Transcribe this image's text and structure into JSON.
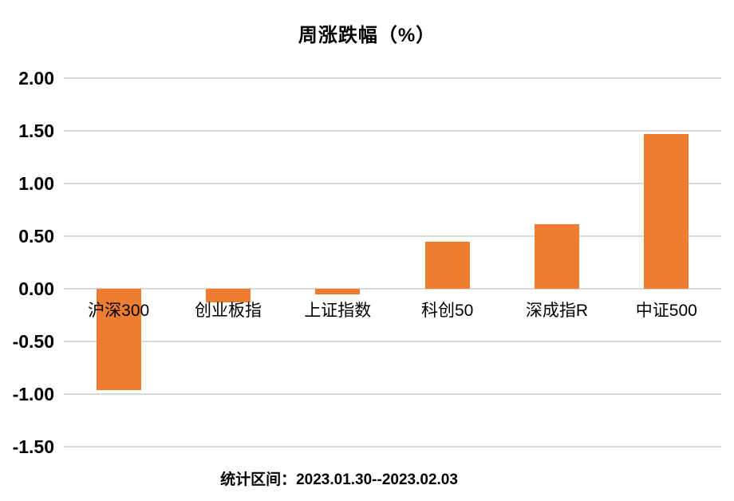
{
  "title": "周涨跌幅（%）",
  "footer": "统计区间：2023.01.30--2023.02.03",
  "colors": {
    "bar": "#ED7D31",
    "gridline": "#D9D9D9",
    "text": "#000000",
    "background": "#FFFFFF"
  },
  "chart_data": {
    "type": "bar",
    "title": "周涨跌幅（%）",
    "categories": [
      "沪深300",
      "创业板指",
      "上证指数",
      "科创50",
      "深成指R",
      "中证500"
    ],
    "values": [
      -0.96,
      -0.13,
      -0.05,
      0.45,
      0.61,
      1.47
    ],
    "xlabel": "",
    "ylabel": "",
    "ylim": [
      -1.5,
      2.0
    ],
    "ytick_step": 0.5,
    "ytick_labels": [
      "2.00",
      "1.50",
      "1.00",
      "0.50",
      "0.00",
      "-0.50",
      "-1.00",
      "-1.50"
    ],
    "grid": true,
    "legend": false,
    "bar_color": "#ED7D31",
    "annotation": "统计区间：2023.01.30--2023.02.03"
  }
}
